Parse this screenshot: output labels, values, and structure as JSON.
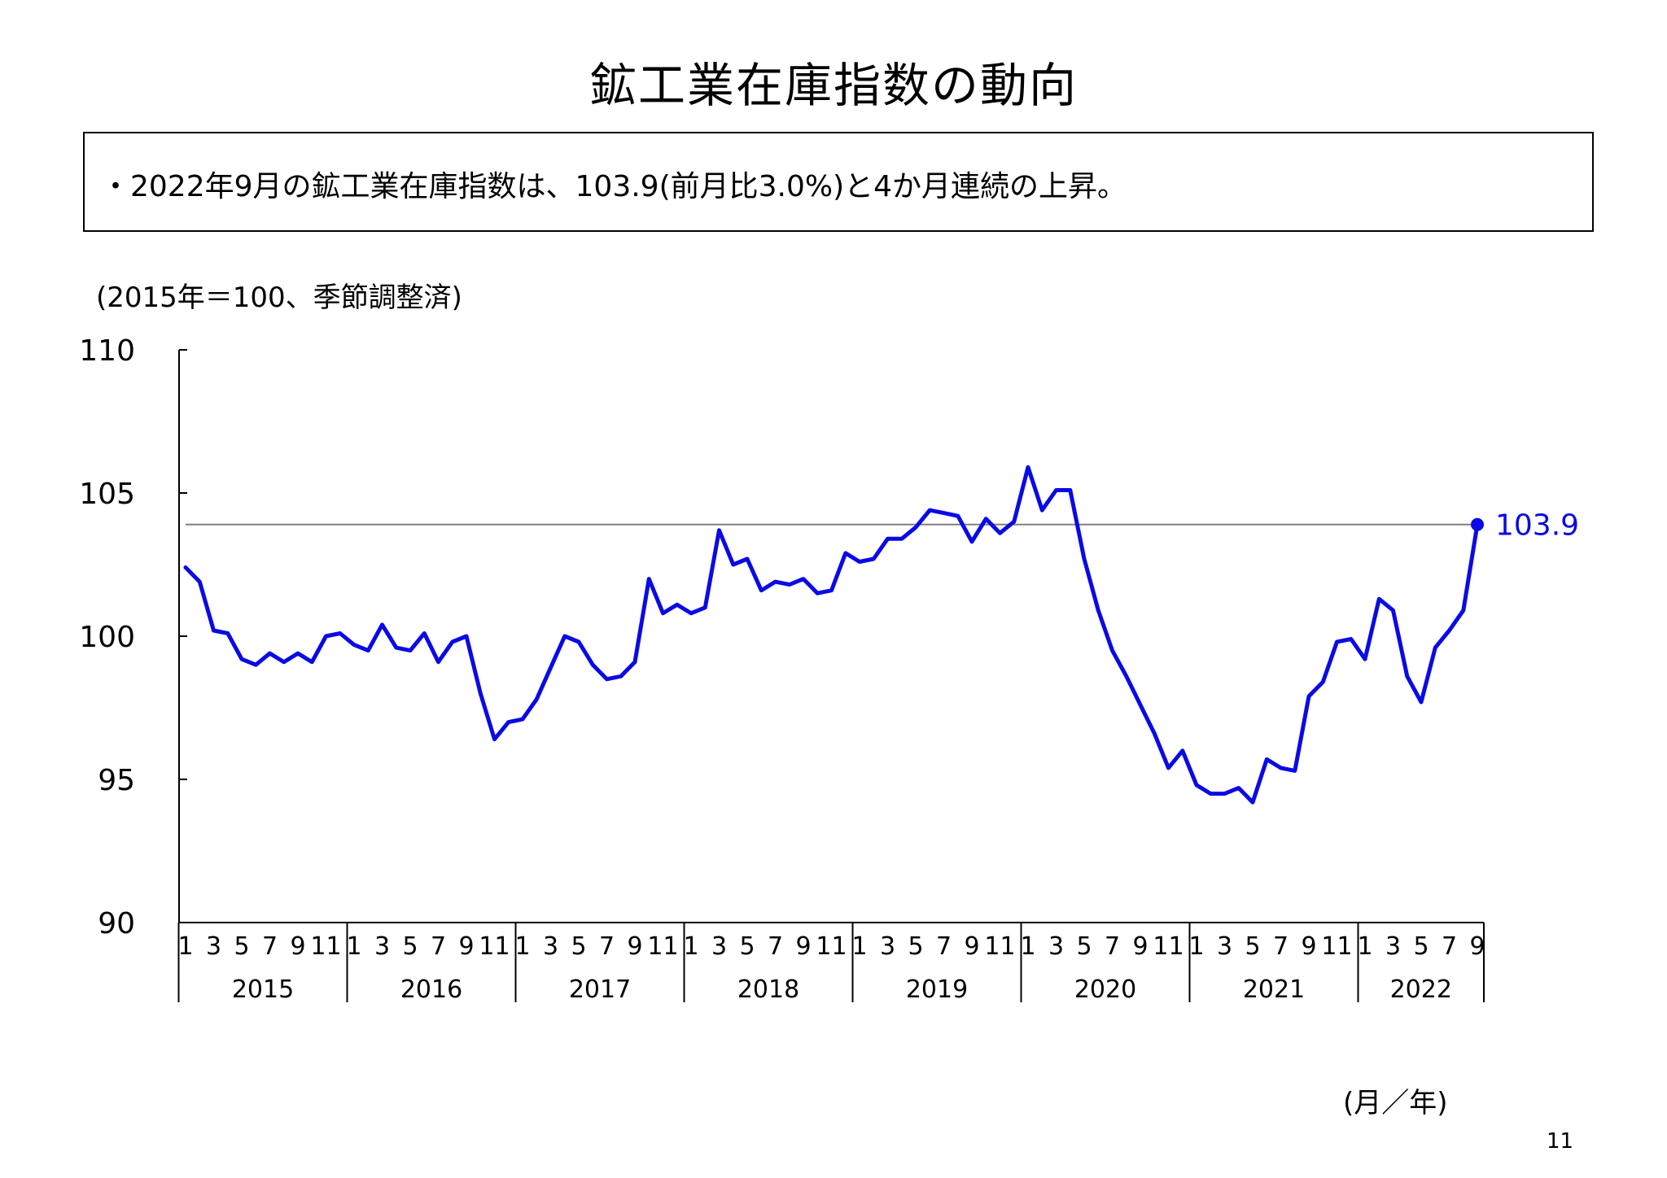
{
  "title": "鉱工業在庫指数の動向",
  "summary": "・2022年9月の鉱工業在庫指数は、103.9(前月比3.0%)と4か月連続の上昇。",
  "unit_note": "(2015年＝100、季節調整済)",
  "axis_unit": "(月／年)",
  "page_number": "11",
  "colors": {
    "series": "#0a0ae6",
    "reference_line": "#808080",
    "axis": "#000000"
  },
  "chart_data": {
    "type": "line",
    "ylim": [
      90,
      110
    ],
    "y_ticks": [
      "110",
      "105",
      "100",
      "95",
      "90"
    ],
    "month_tick_labels": [
      "1",
      "3",
      "5",
      "7",
      "9",
      "11"
    ],
    "years": [
      "2015",
      "2016",
      "2017",
      "2018",
      "2019",
      "2020",
      "2021",
      "2022"
    ],
    "months_2022": [
      "1",
      "3",
      "5",
      "7",
      "9"
    ],
    "reference_value": 103.9,
    "end_label": "103.9",
    "series": [
      {
        "values": [
          102.4,
          101.9,
          100.2,
          100.1,
          99.2,
          99.0,
          99.4,
          99.1,
          99.4,
          99.1,
          100.0,
          100.1,
          99.7,
          99.5,
          100.4,
          99.6,
          99.5,
          100.1,
          99.1,
          99.8,
          100.0,
          98.0,
          96.4,
          97.0,
          97.1,
          97.8,
          98.9,
          100.0,
          99.8,
          99.0,
          98.5,
          98.6,
          99.1,
          102.0,
          100.8,
          101.1,
          100.8,
          101.0,
          103.7,
          102.5,
          102.7,
          101.6,
          101.9,
          101.8,
          102.0,
          101.5,
          101.6,
          102.9,
          102.6,
          102.7,
          103.4,
          103.4,
          103.8,
          104.4,
          104.3,
          104.2,
          103.3,
          104.1,
          103.6,
          104.0,
          105.9,
          104.4,
          105.1,
          105.1,
          102.7,
          100.9,
          99.5,
          98.6,
          97.6,
          96.6,
          95.4,
          96.0,
          94.8,
          94.5,
          94.5,
          94.7,
          94.2,
          95.7,
          95.4,
          95.3,
          97.9,
          98.4,
          99.8,
          99.9,
          99.2,
          101.3,
          100.9,
          98.6,
          97.7,
          99.6,
          100.2,
          100.9,
          103.9
        ]
      }
    ]
  }
}
